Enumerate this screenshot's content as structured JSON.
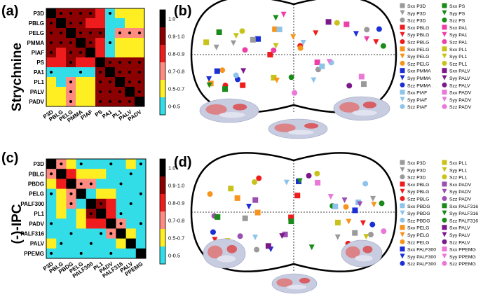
{
  "figure": {
    "panel_labels": [
      "(a)",
      "(b)",
      "(c)",
      "(d)"
    ],
    "row_labels": [
      "Strychnine",
      "(-)-IPC"
    ]
  },
  "chart_data": [
    {
      "type": "heatmap",
      "panel": "(a)",
      "labels": [
        "P3D",
        "PBLG",
        "PELG",
        "PMMA",
        "PIAF",
        "PS",
        "PA1",
        "PL1",
        "PALV",
        "PADV"
      ],
      "colorbar": {
        "bins": [
          "1.0",
          "0.9-1.0",
          "0.8-0.9",
          "0.7-0.8",
          "0.5-0.7",
          "0-0.5"
        ],
        "colors": [
          "#000000",
          "#8b0000",
          "#ee1c1c",
          "#ff8a80",
          "#ffee22",
          "#33dde8"
        ]
      },
      "matrix": [
        [
          0,
          1,
          1,
          1,
          1,
          2,
          5,
          4,
          4,
          4
        ],
        [
          1,
          0,
          1,
          1,
          2,
          2,
          5,
          5,
          4,
          4
        ],
        [
          1,
          1,
          0,
          1,
          1,
          1,
          5,
          3,
          3,
          3
        ],
        [
          1,
          1,
          1,
          0,
          1,
          2,
          5,
          4,
          4,
          4
        ],
        [
          1,
          2,
          1,
          1,
          0,
          2,
          5,
          4,
          4,
          4
        ],
        [
          2,
          2,
          1,
          2,
          2,
          0,
          1,
          1,
          1,
          1
        ],
        [
          5,
          5,
          5,
          5,
          5,
          1,
          0,
          1,
          1,
          1
        ],
        [
          4,
          5,
          3,
          4,
          4,
          1,
          1,
          0,
          1,
          1
        ],
        [
          4,
          4,
          3,
          4,
          4,
          1,
          1,
          1,
          0,
          1
        ],
        [
          4,
          4,
          3,
          4,
          4,
          1,
          1,
          1,
          1,
          0
        ]
      ]
    },
    {
      "type": "heatmap",
      "panel": "(c)",
      "labels": [
        "P3D",
        "PBLG",
        "PBDG",
        "PELG",
        "PALF300",
        "PL1",
        "PADV",
        "PALF316",
        "PALV",
        "PPEMG"
      ],
      "colorbar": {
        "bins": [
          "1.0",
          "0.9-1.0",
          "0.8-0.9",
          "0.7-0.8",
          "0.5-0.7",
          "0-0.5"
        ],
        "colors": [
          "#000000",
          "#8b0000",
          "#ee1c1c",
          "#ff8a80",
          "#ffee22",
          "#33dde8"
        ]
      },
      "matrix": [
        [
          0,
          3,
          4,
          5,
          5,
          5,
          5,
          5,
          4,
          5
        ],
        [
          3,
          0,
          2,
          4,
          4,
          4,
          5,
          5,
          5,
          5
        ],
        [
          4,
          2,
          0,
          3,
          3,
          5,
          5,
          5,
          5,
          5
        ],
        [
          5,
          4,
          3,
          0,
          5,
          4,
          4,
          5,
          5,
          5
        ],
        [
          5,
          4,
          3,
          5,
          0,
          1,
          2,
          5,
          5,
          5
        ],
        [
          5,
          4,
          5,
          4,
          1,
          0,
          2,
          5,
          5,
          5
        ],
        [
          5,
          5,
          5,
          4,
          2,
          2,
          0,
          3,
          5,
          5
        ],
        [
          5,
          5,
          5,
          5,
          5,
          5,
          3,
          0,
          4,
          5
        ],
        [
          4,
          5,
          5,
          5,
          5,
          5,
          5,
          4,
          0,
          5
        ],
        [
          5,
          5,
          5,
          5,
          5,
          5,
          5,
          5,
          5,
          0
        ]
      ]
    },
    {
      "type": "scatter",
      "panel": "(b)",
      "projection": "sanson-flamsteed sphere map",
      "legend_columns": [
        [
          "Sxx P3D",
          "Syy P3D",
          "Szz P3D",
          "Sxx PBLG",
          "Syy PBLG",
          "Szz PBLG",
          "Sxx PELG",
          "Syy PELG",
          "Szz PELG",
          "Sxx PMMA",
          "Syy PMMA",
          "Szz PMMA",
          "Sxx PIAF",
          "Syy PIAF",
          "Szz PIAF"
        ],
        [
          "Sxx PS",
          "Syy PS",
          "Szz PS",
          "Sxx PA1",
          "Syy PA1",
          "Szz PA1",
          "Sxx PL1",
          "Syy PL1",
          "Szz PL1",
          "Sxx PALV",
          "Syy PALV",
          "Szz PALV",
          "Sxx PADV",
          "Syy PADV",
          "Szz PADV"
        ]
      ],
      "legend_colors": [
        [
          "#9a9a9a",
          "#9a9a9a",
          "#9a9a9a",
          "#ee1c1c",
          "#ee1c1c",
          "#ee1c1c",
          "#f7941d",
          "#f7941d",
          "#f7941d",
          "#1b2fd6",
          "#1b2fd6",
          "#1b2fd6",
          "#8ec3ea",
          "#8ec3ea",
          "#8ec3ea"
        ],
        [
          "#1a8a1a",
          "#1a8a1a",
          "#1a8a1a",
          "#ee3fa8",
          "#ee3fa8",
          "#ee3fa8",
          "#c9c21a",
          "#c9c21a",
          "#c9c21a",
          "#7a1a8a",
          "#7a1a8a",
          "#7a1a8a",
          "#e978d8",
          "#e978d8",
          "#e978d8"
        ]
      ]
    },
    {
      "type": "scatter",
      "panel": "(d)",
      "projection": "sanson-flamsteed sphere map",
      "legend_columns": [
        [
          "Sxx P3D",
          "Syy P3D",
          "Szz P3D",
          "Sxx PBLG",
          "Syy PBLG",
          "Szz PBLG",
          "Sxx PBDG",
          "Syy PBDG",
          "Szz PBDG",
          "Sxx PELG",
          "Syy PELG",
          "Szz PELG",
          "Sxx PALF300",
          "Syy PALF300",
          "Szz PALF300"
        ],
        [
          "Sxx PL1",
          "Syy PL1",
          "Szz PL1",
          "Sxx PADV",
          "Syy PADV",
          "Szz PADV",
          "Sxx PALF316",
          "Syy PALF316",
          "Szz PALF316",
          "Sxx PALV",
          "Syy PALV",
          "Szz PALV",
          "Sxx PPEMG",
          "Syy PPEMG",
          "Szz PPEMG"
        ]
      ],
      "legend_colors": [
        [
          "#9a9a9a",
          "#9a9a9a",
          "#9a9a9a",
          "#ee1c1c",
          "#ee1c1c",
          "#ee1c1c",
          "#8ec3ea",
          "#8ec3ea",
          "#8ec3ea",
          "#f7941d",
          "#f7941d",
          "#f7941d",
          "#1b2fd6",
          "#1b2fd6",
          "#1b2fd6"
        ],
        [
          "#c9c21a",
          "#c9c21a",
          "#c9c21a",
          "#9b4fb0",
          "#9b4fb0",
          "#9b4fb0",
          "#1a8a1a",
          "#1a8a1a",
          "#1a8a1a",
          "#7a1a8a",
          "#7a1a8a",
          "#7a1a8a",
          "#e978d8",
          "#e978d8",
          "#e978d8"
        ]
      ]
    }
  ]
}
